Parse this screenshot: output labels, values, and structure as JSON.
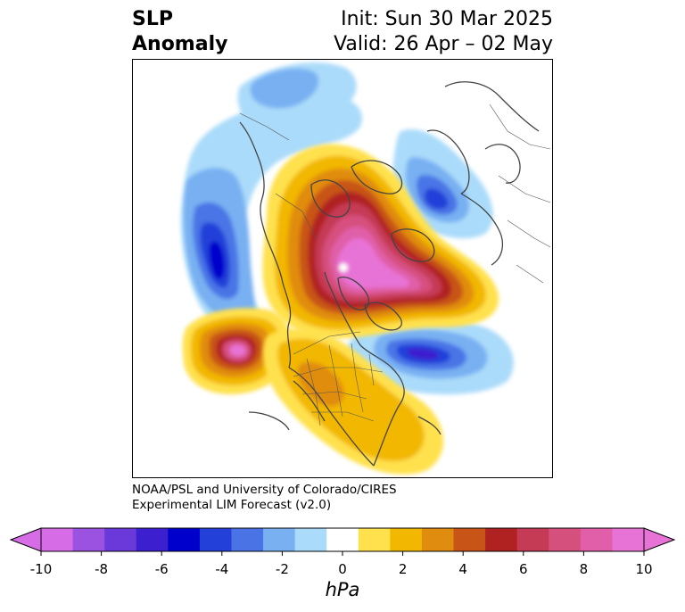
{
  "header": {
    "title_line1": "SLP",
    "title_line2": "Anomaly",
    "init_text": "Init: Sun 30 Mar 2025",
    "valid_text": "Valid: 26 Apr – 02 May"
  },
  "credit": {
    "line1": "NOAA/PSL and University of Colorado/CIRES",
    "line2": "Experimental LIM Forecast (v2.0)"
  },
  "colorbar": {
    "unit": "hPa",
    "levels": [
      -10,
      -9,
      -8,
      -7,
      -6,
      -5,
      -4,
      -3,
      -2,
      -1,
      1,
      2,
      3,
      4,
      5,
      6,
      7,
      8,
      9,
      10
    ],
    "colors": [
      "#d66de6",
      "#9b52e0",
      "#6b38d9",
      "#3c1fcf",
      "#0000cc",
      "#2340d9",
      "#4a74e6",
      "#78b0f2",
      "#aadbfa",
      "#ffffff",
      "#ffe14d",
      "#f2b700",
      "#e08c0f",
      "#c85418",
      "#b02222",
      "#c53a55",
      "#d6507e",
      "#e05fa8",
      "#e873d6"
    ],
    "ticks": [
      {
        "value": -10,
        "label": "-10"
      },
      {
        "value": -8,
        "label": "-8"
      },
      {
        "value": -6,
        "label": "-6"
      },
      {
        "value": -4,
        "label": "-4"
      },
      {
        "value": -2,
        "label": "-2"
      },
      {
        "value": 0,
        "label": "0"
      },
      {
        "value": 2,
        "label": "2"
      },
      {
        "value": 4,
        "label": "4"
      },
      {
        "value": 6,
        "label": "6"
      },
      {
        "value": 8,
        "label": "8"
      },
      {
        "value": 10,
        "label": "10"
      }
    ],
    "extend": "both"
  }
}
